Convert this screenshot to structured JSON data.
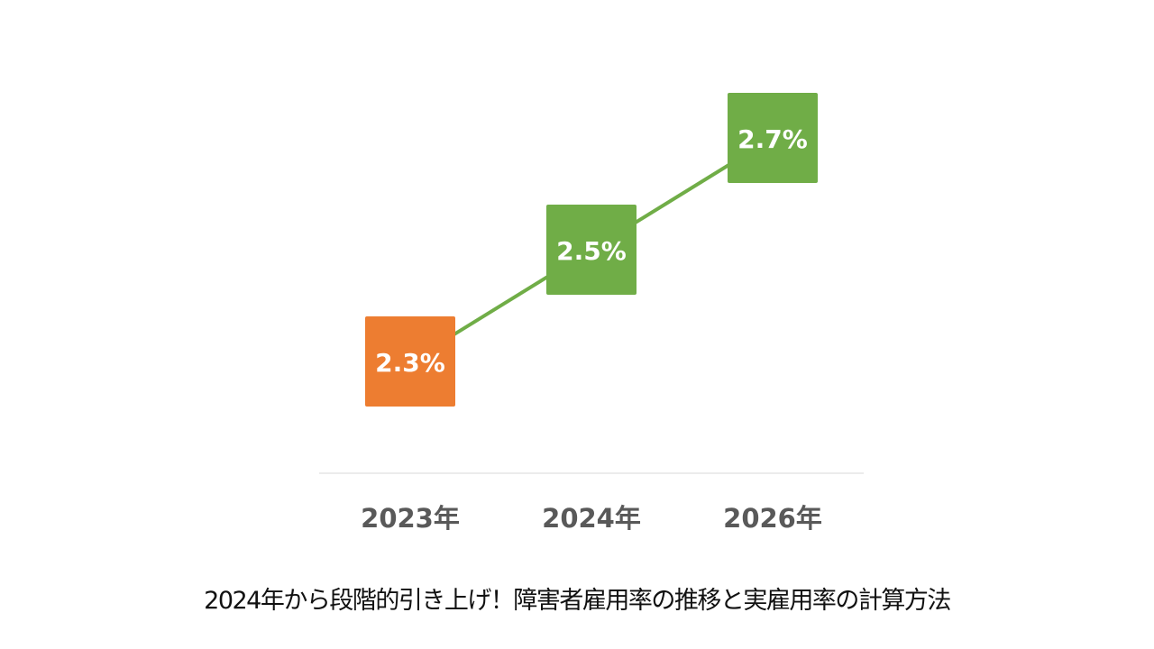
{
  "caption": "2024年から段階的引き上げ！障害者雇用率の推移と実雇用率の計算方法",
  "colors": {
    "current": "#ED7D31",
    "future": "#70AD47",
    "line": "#70AD47",
    "axis": "#D9D9D9",
    "tick_text": "#595959",
    "label_text": "#FFFFFF"
  },
  "chart_data": {
    "type": "line",
    "categories": [
      "2023年",
      "2024年",
      "2026年"
    ],
    "values": [
      2.3,
      2.5,
      2.7
    ],
    "data_labels": [
      "2.3%",
      "2.5%",
      "2.7%"
    ],
    "point_colors": [
      "#ED7D31",
      "#70AD47",
      "#70AD47"
    ],
    "ylim": [
      2.1,
      2.8
    ],
    "grid": false,
    "legend": "none"
  }
}
